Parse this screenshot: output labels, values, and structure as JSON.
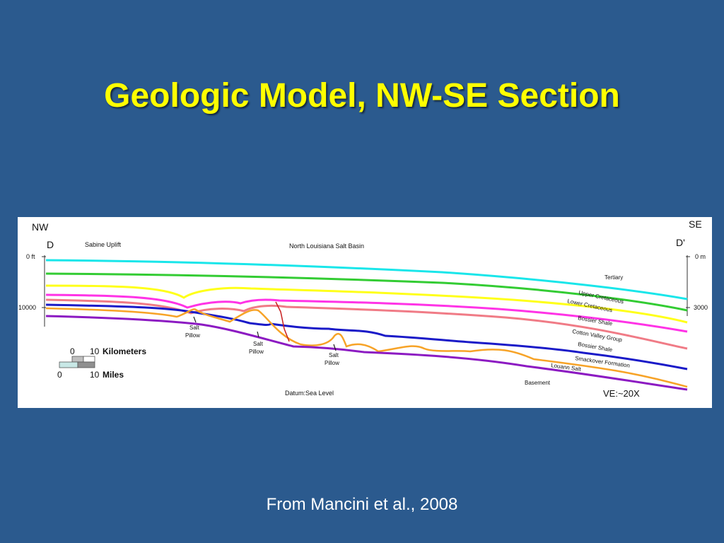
{
  "slide": {
    "title": "Geologic Model, NW-SE Section",
    "credit": "From Mancini et al., 2008"
  },
  "section": {
    "left_end": {
      "direction": "NW",
      "letter": "D"
    },
    "right_end": {
      "direction": "SE",
      "letter": "D'"
    },
    "regions": [
      "Sabine Uplift",
      "North Louisiana Salt Basin"
    ],
    "left_depths": [
      "0 ft",
      "10000"
    ],
    "right_depths": [
      "0 m",
      "3000"
    ],
    "unit_labels": [
      "Tertiary",
      "Upper Cretaceous",
      "Lower Cretaceous",
      "Bossier Shale",
      "Cotton Valley Group",
      "Bossier Shale",
      "Smackover Formation",
      "Louann Salt",
      "Basement"
    ],
    "pillow_labels": [
      {
        "top": "Salt",
        "bottom": "Pillow"
      },
      {
        "top": "Salt",
        "bottom": "Pillow"
      },
      {
        "top": "Salt",
        "bottom": "Pillow"
      }
    ],
    "scale": {
      "km": {
        "zero": "0",
        "value": "10",
        "unit": "Kilometers"
      },
      "mi": {
        "zero": "0",
        "value": "10",
        "unit": "Miles"
      }
    },
    "datum": "Datum:Sea Level",
    "vertical_exaggeration": "VE:~20X",
    "colors": {
      "tertiary_top": "#19e6ea",
      "upper_cretaceous": "#33cc33",
      "lower_cretaceous": "#ffff1a",
      "bossier_top": "#ff33e6",
      "cotton_valley": "#f07b86",
      "bossier_lower": "#1a1ac8",
      "smackover": "#f7a327",
      "louann_salt": "#8c1ac2",
      "fault": "#c81e1e"
    }
  }
}
